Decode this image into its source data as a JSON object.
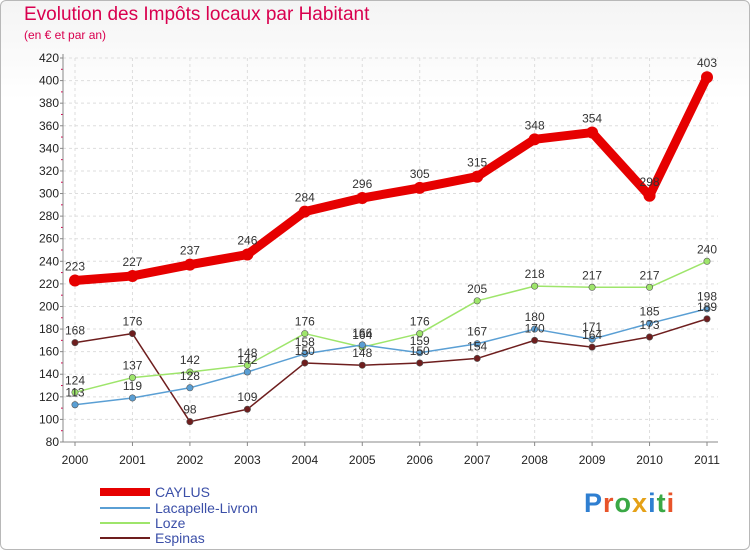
{
  "header": {
    "title": "Evolution des Impôts locaux par Habitant",
    "subtitle": "(en € et par an)"
  },
  "brand": {
    "text": "Proxiti",
    "colors": [
      "#2f7fd1",
      "#e8542a",
      "#3aa845",
      "#e5a117",
      "#2f7fd1",
      "#3aa845",
      "#e8542a"
    ]
  },
  "colors": {
    "caylus": "#e60000",
    "lacapelle": "#5a9fd4",
    "loze": "#9ee56b",
    "espinas": "#6e1e1e",
    "title": "#d9004f"
  },
  "chart_data": {
    "type": "line",
    "title": "Evolution des Impôts locaux par Habitant",
    "subtitle": "(en € et par an)",
    "xlabel": "",
    "ylabel": "",
    "ylim": [
      80,
      420
    ],
    "ytick_step": 20,
    "yticks": [
      "80",
      "100",
      "120",
      "140",
      "160",
      "180",
      "200",
      "220",
      "240",
      "260",
      "280",
      "300",
      "320",
      "340",
      "360",
      "380",
      "400",
      "420"
    ],
    "categories": [
      "2000",
      "2001",
      "2002",
      "2003",
      "2004",
      "2005",
      "2006",
      "2007",
      "2008",
      "2009",
      "2010",
      "2011"
    ],
    "grid": true,
    "legend_position": "bottom-left",
    "series": [
      {
        "name": "CAYLUS",
        "color": "#e60000",
        "values": [
          223,
          227,
          237,
          246,
          284,
          296,
          305,
          315,
          348,
          354,
          298,
          403
        ],
        "labels": [
          "223",
          "227",
          "237",
          "246",
          "284",
          "296",
          "305",
          "315",
          "348",
          "354",
          "298",
          "403"
        ]
      },
      {
        "name": "Lacapelle-Livron",
        "color": "#5a9fd4",
        "values": [
          113,
          119,
          128,
          142,
          158,
          166,
          159,
          167,
          180,
          171,
          185,
          198
        ],
        "labels": [
          "113",
          "119",
          "128",
          "142",
          "158",
          "166",
          "159",
          "167",
          "180",
          "171",
          "185",
          "198"
        ]
      },
      {
        "name": "Loze",
        "color": "#9ee56b",
        "values": [
          124,
          137,
          142,
          148,
          176,
          164,
          176,
          205,
          218,
          217,
          217,
          240
        ],
        "labels": [
          "124",
          "137",
          "142",
          "148",
          "176",
          "164",
          "176",
          "205",
          "218",
          "217",
          "217",
          "240"
        ]
      },
      {
        "name": "Espinas",
        "color": "#6e1e1e",
        "values": [
          168,
          176,
          98,
          109,
          150,
          148,
          150,
          154,
          170,
          164,
          173,
          189
        ],
        "labels": [
          "168",
          "176",
          "98",
          "109",
          "150",
          "148",
          "150",
          "154",
          "170",
          "164",
          "173",
          "189"
        ]
      }
    ]
  }
}
